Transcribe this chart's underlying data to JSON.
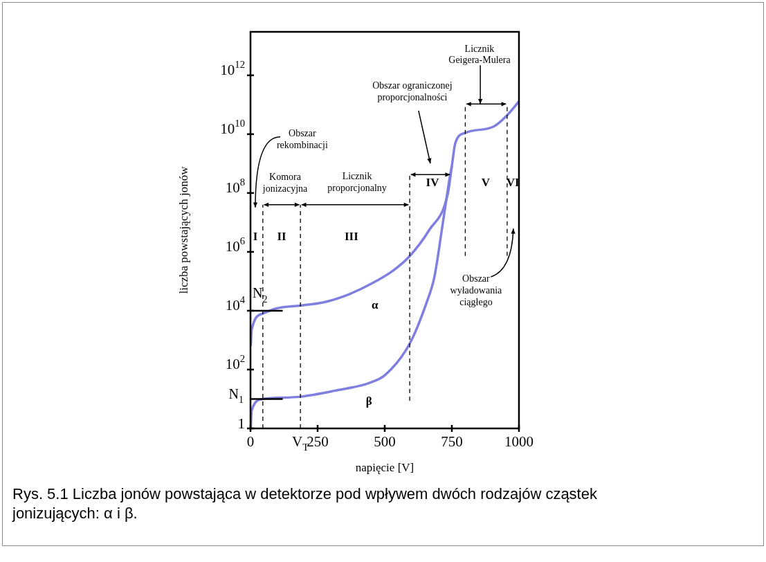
{
  "chart_data": {
    "type": "line",
    "xlabel": "napięcie [V]",
    "ylabel": "liczba powstających jonów",
    "log": true,
    "marker": "none",
    "xlim": [
      0,
      1000
    ],
    "xticks": [
      0,
      {
        "value": 186,
        "label": "V$_{T}$"
      },
      250,
      500,
      750,
      1000
    ],
    "ylim": [
      1,
      30000000000000
    ],
    "yticks": [
      1,
      {
        "value": 100,
        "label": "10$^{2}$"
      },
      {
        "value": 10000,
        "label": "10$^{4}$"
      },
      {
        "value": 1000000,
        "label": "10$^{6}$"
      },
      {
        "value": 100000000,
        "label": "10$^{8}$"
      },
      {
        "value": 10000000000,
        "label": "10$^{10}$"
      },
      {
        "value": 1000000000000,
        "label": "10$^{12}$"
      }
    ],
    "series": [
      {
        "name": "α",
        "color": "#7f7fe0",
        "x": [
          1,
          4,
          46,
          98,
          186,
          270,
          356,
          442,
          528,
          593,
          665,
          735,
          750,
          763,
          799,
          905,
          956,
          1000
        ],
        "values": [
          630,
          2200,
          8000,
          12000,
          15000,
          19000,
          33000,
          76000,
          220000,
          720000,
          5400000,
          95000000,
          830000000,
          5000000000,
          11000000000,
          18000000000,
          44000000000,
          130000000000
        ]
      },
      {
        "name": "β",
        "color": "#7f7fe0",
        "x": [
          1,
          4,
          46,
          186,
          312,
          442,
          502,
          593,
          656,
          685,
          716,
          742,
          750
        ],
        "values": [
          1,
          4,
          10,
          12,
          19,
          35,
          66,
          760,
          19000,
          140000,
          9000000,
          330000000,
          830000000
        ]
      }
    ],
    "ref_lines": [
      {
        "axis": "y",
        "value": 10,
        "label": "N$_{1}$",
        "color": "#000000",
        "line_style": "solid"
      },
      {
        "axis": "y",
        "value": 10000,
        "label": "N$_{2}$",
        "color": "#000000",
        "line_style": "solid"
      },
      {
        "axis": "x",
        "value": 46,
        "color": "#000000",
        "line_style": "dashed"
      },
      {
        "axis": "x",
        "value": 186,
        "color": "#000000",
        "line_style": "dashed"
      },
      {
        "axis": "x",
        "value": 593,
        "color": "#000000",
        "line_style": "dashed"
      },
      {
        "axis": "x",
        "value": 800,
        "color": "#000000",
        "line_style": "dashed"
      },
      {
        "axis": "x",
        "value": 956,
        "color": "#000000",
        "line_style": "dashed"
      }
    ],
    "annotations": [
      "Obszar\nrekombinacji",
      "Komora\njonizacyjna",
      "Licznik\nproporcjonalny",
      "Obszar ograniczonej\nproporcjonalności",
      "Licznik\nGeigera-Mulera",
      "Obszar\nwyładowania\nciągłego",
      "I",
      "II",
      "III",
      "IV",
      "V",
      "VI",
      "Rys. 5.1 Liczba jonów powstająca w detektorze pod wpływem dwóch rodzajów cząstek jonizujących: α i β."
    ]
  }
}
